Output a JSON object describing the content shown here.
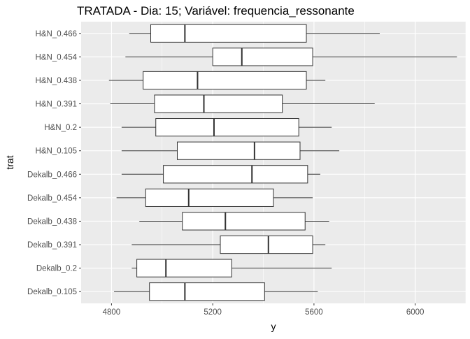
{
  "chart_data": {
    "type": "boxplot",
    "orientation": "horizontal",
    "title": "TRATADA - Dia: 15; Variável: frequencia_ressonante",
    "xlabel": "y",
    "ylabel": "trat",
    "xlim": [
      4680,
      6200
    ],
    "x_ticks": [
      4800,
      5200,
      5600,
      6000
    ],
    "grid": true,
    "theme": {
      "panel_background": "#EBEBEB",
      "grid_color": "#FFFFFF",
      "box_fill": "#FFFFFF",
      "line_color": "#333333"
    },
    "categories": [
      "H&N_0.466",
      "H&N_0.454",
      "H&N_0.438",
      "H&N_0.391",
      "H&N_0.2",
      "H&N_0.105",
      "Dekalb_0.466",
      "Dekalb_0.454",
      "Dekalb_0.438",
      "Dekalb_0.391",
      "Dekalb_0.2",
      "Dekalb_0.105"
    ],
    "boxes": [
      {
        "category": "H&N_0.466",
        "min": 4870,
        "q1": 4955,
        "median": 5090,
        "q3": 5570,
        "max": 5860
      },
      {
        "category": "H&N_0.454",
        "min": 4855,
        "q1": 5200,
        "median": 5315,
        "q3": 5595,
        "max": 6165
      },
      {
        "category": "H&N_0.438",
        "min": 4790,
        "q1": 4925,
        "median": 5140,
        "q3": 5570,
        "max": 5645
      },
      {
        "category": "H&N_0.391",
        "min": 4795,
        "q1": 4970,
        "median": 5165,
        "q3": 5475,
        "max": 5840
      },
      {
        "category": "H&N_0.2",
        "min": 4840,
        "q1": 4975,
        "median": 5205,
        "q3": 5540,
        "max": 5670
      },
      {
        "category": "H&N_0.105",
        "min": 4840,
        "q1": 5060,
        "median": 5365,
        "q3": 5545,
        "max": 5700
      },
      {
        "category": "Dekalb_0.466",
        "min": 4840,
        "q1": 5005,
        "median": 5355,
        "q3": 5575,
        "max": 5625
      },
      {
        "category": "Dekalb_0.454",
        "min": 4820,
        "q1": 4935,
        "median": 5105,
        "q3": 5440,
        "max": 5595
      },
      {
        "category": "Dekalb_0.438",
        "min": 4910,
        "q1": 5080,
        "median": 5250,
        "q3": 5565,
        "max": 5660
      },
      {
        "category": "Dekalb_0.391",
        "min": 4880,
        "q1": 5230,
        "median": 5420,
        "q3": 5595,
        "max": 5645
      },
      {
        "category": "Dekalb_0.2",
        "min": 4880,
        "q1": 4900,
        "median": 5015,
        "q3": 5275,
        "max": 5670
      },
      {
        "category": "Dekalb_0.105",
        "min": 4810,
        "q1": 4950,
        "median": 5090,
        "q3": 5405,
        "max": 5615
      }
    ]
  }
}
